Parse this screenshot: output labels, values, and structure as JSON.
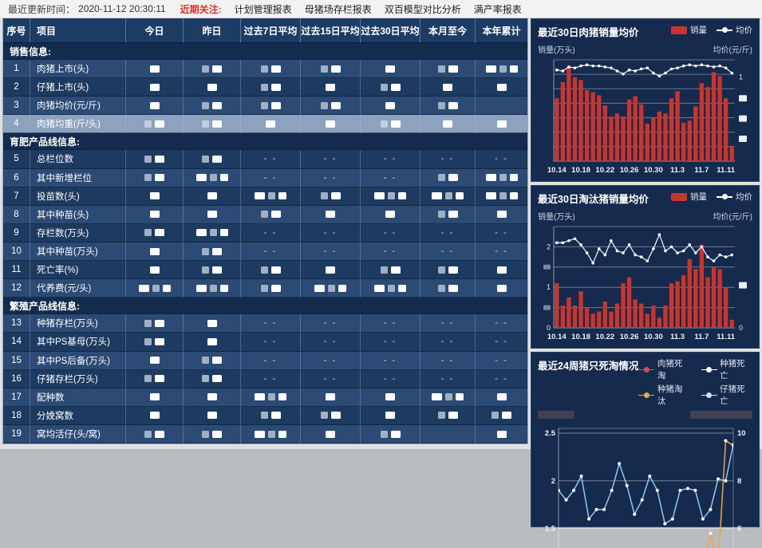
{
  "topbar": {
    "updated_label": "最近更新时间：",
    "updated_time": "2020-11-12 20:30:11",
    "focus_label": "近期关注:",
    "focus_color": "#d9342b",
    "links": [
      "计划管理报表",
      "母猪场存栏报表",
      "双百模型对比分析",
      "满产率报表"
    ]
  },
  "table": {
    "headers": [
      "序号",
      "项目",
      "今日",
      "昨日",
      "过去7日平均",
      "过去15日平均",
      "过去30日平均",
      "本月至今",
      "本年累计"
    ],
    "dash_display": "- -",
    "rows": [
      {
        "type": "section",
        "label": "销售信息:"
      },
      {
        "type": "data",
        "no": "1",
        "item": "肉猪上市(头)",
        "shade": "light",
        "cells": [
          "r1",
          "r2",
          "r2",
          "r2",
          "r1",
          "r2",
          "r3"
        ]
      },
      {
        "type": "data",
        "no": "2",
        "item": "仔猪上市(头)",
        "shade": "dark",
        "cells": [
          "r1",
          "r1",
          "r2",
          "r1",
          "r2",
          "r1",
          "r1"
        ]
      },
      {
        "type": "data",
        "no": "3",
        "item": "肉猪均价(元/斤)",
        "shade": "light",
        "cells": [
          "r1",
          "r2",
          "r2",
          "r2",
          "r1",
          "r2",
          ""
        ]
      },
      {
        "type": "data",
        "no": "4",
        "item": "肉猪均重(斤/头)",
        "shade": "selected",
        "cells": [
          "r2",
          "r2",
          "r1",
          "r1",
          "r2",
          "r1",
          "r1"
        ]
      },
      {
        "type": "section",
        "label": "育肥产品线信息:"
      },
      {
        "type": "data",
        "no": "5",
        "item": "总栏位数",
        "shade": "dark",
        "cells": [
          "r2",
          "r2",
          "--",
          "--",
          "--",
          "--",
          "--"
        ]
      },
      {
        "type": "data",
        "no": "6",
        "item": "其中新增栏位",
        "shade": "light",
        "cells": [
          "r2",
          "r3",
          "--",
          "--",
          "--",
          "r2",
          "r3"
        ]
      },
      {
        "type": "data",
        "no": "7",
        "item": "投苗数(头)",
        "shade": "dark",
        "cells": [
          "r1",
          "r1",
          "r3",
          "r2",
          "r3",
          "r3",
          "r3"
        ]
      },
      {
        "type": "data",
        "no": "8",
        "item": "其中种苗(头)",
        "shade": "light",
        "cells": [
          "r1",
          "r1",
          "r2",
          "r1",
          "r1",
          "r2",
          "r1"
        ]
      },
      {
        "type": "data",
        "no": "9",
        "item": "存栏数(万头)",
        "shade": "dark",
        "cells": [
          "r2",
          "r3",
          "--",
          "--",
          "--",
          "--",
          "--"
        ]
      },
      {
        "type": "data",
        "no": "10",
        "item": "其中种苗(万头)",
        "shade": "light",
        "cells": [
          "r1",
          "r2",
          "--",
          "--",
          "--",
          "--",
          "--"
        ]
      },
      {
        "type": "data",
        "no": "11",
        "item": "死亡率(%)",
        "shade": "dark",
        "cells": [
          "r1",
          "r2",
          "r2",
          "r1",
          "r2",
          "r2",
          "r1"
        ]
      },
      {
        "type": "data",
        "no": "12",
        "item": "代养费(元/头)",
        "shade": "light",
        "cells": [
          "r3",
          "r3",
          "r2",
          "r3",
          "r3",
          "r2",
          "r1"
        ]
      },
      {
        "type": "section",
        "label": "繁殖产品线信息:"
      },
      {
        "type": "data",
        "no": "13",
        "item": "种猪存栏(万头)",
        "shade": "light",
        "cells": [
          "r2",
          "r1",
          "--",
          "--",
          "--",
          "--",
          "--"
        ]
      },
      {
        "type": "data",
        "no": "14",
        "item": "其中PS基母(万头)",
        "shade": "dark",
        "cells": [
          "r2",
          "r1",
          "--",
          "--",
          "--",
          "--",
          "--"
        ]
      },
      {
        "type": "data",
        "no": "15",
        "item": "其中PS后备(万头)",
        "shade": "light",
        "cells": [
          "r1",
          "r2",
          "--",
          "--",
          "--",
          "--",
          "--"
        ]
      },
      {
        "type": "data",
        "no": "16",
        "item": "仔猪存栏(万头)",
        "shade": "dark",
        "cells": [
          "r2",
          "r2",
          "--",
          "--",
          "--",
          "--",
          "--"
        ]
      },
      {
        "type": "data",
        "no": "17",
        "item": "配种数",
        "shade": "light",
        "cells": [
          "r1",
          "r1",
          "r3",
          "r1",
          "r1",
          "r3",
          "r1"
        ]
      },
      {
        "type": "data",
        "no": "18",
        "item": "分娩窝数",
        "shade": "dark",
        "cells": [
          "r1",
          "r1",
          "r2",
          "r2",
          "r1",
          "r2",
          "r2"
        ]
      },
      {
        "type": "data",
        "no": "19",
        "item": "窝均活仔(头/窝)",
        "shade": "light",
        "cells": [
          "r2",
          "r2",
          "r3",
          "r1",
          "r2",
          "",
          "r1"
        ]
      }
    ]
  },
  "chart_data": [
    {
      "type": "bar",
      "title": "最近30日肉猪销量均价",
      "legend": [
        {
          "name": "销量",
          "kind": "bar",
          "color": "#c9352e"
        },
        {
          "name": "均价",
          "kind": "line",
          "color": "#ffffff"
        }
      ],
      "ylabel_left": "销量(万头)",
      "ylabel_right": "均价(元/斤)",
      "note": "y-axis numeric labels redacted except right-axis value 1",
      "x_tick_labels": [
        "10.14",
        "10.18",
        "10.22",
        "10.26",
        "10.30",
        "11.3",
        "11.7",
        "11.11"
      ],
      "x_tick_indices": [
        0,
        4,
        8,
        12,
        16,
        20,
        24,
        28
      ],
      "bars_relative": [
        0.62,
        0.78,
        0.93,
        0.83,
        0.8,
        0.7,
        0.68,
        0.65,
        0.55,
        0.44,
        0.47,
        0.44,
        0.61,
        0.64,
        0.56,
        0.37,
        0.43,
        0.49,
        0.47,
        0.62,
        0.69,
        0.38,
        0.4,
        0.54,
        0.77,
        0.73,
        0.88,
        0.84,
        0.62,
        0.15
      ],
      "line_relative": [
        0.9,
        0.89,
        0.93,
        0.92,
        0.94,
        0.95,
        0.94,
        0.94,
        0.93,
        0.92,
        0.89,
        0.86,
        0.9,
        0.89,
        0.91,
        0.92,
        0.87,
        0.84,
        0.87,
        0.91,
        0.92,
        0.94,
        0.95,
        0.94,
        0.95,
        0.94,
        0.93,
        0.94,
        0.92,
        0.87
      ],
      "right_ticks": [
        {
          "f": 0.83,
          "t": "1"
        },
        {
          "f": 0.62,
          "blob": true
        },
        {
          "f": 0.42,
          "blob": true
        },
        {
          "f": 0.22,
          "blob": true
        }
      ],
      "grid_count": 7
    },
    {
      "type": "bar",
      "title": "最近30日淘汰猪销量均价",
      "legend": [
        {
          "name": "销量",
          "kind": "bar",
          "color": "#c9352e"
        },
        {
          "name": "均价",
          "kind": "line",
          "color": "#ffffff"
        }
      ],
      "ylabel_left": "销量(万头)",
      "ylabel_right": "均价(元/斤)",
      "ylim": [
        0,
        2.5
      ],
      "x_tick_labels": [
        "10.14",
        "10.18",
        "10.22",
        "10.26",
        "10.30",
        "11.3",
        "11.7",
        "11.11"
      ],
      "x_tick_indices": [
        0,
        4,
        8,
        12,
        16,
        20,
        24,
        28
      ],
      "bars": [
        1.1,
        0.55,
        0.75,
        0.55,
        0.9,
        0.5,
        0.35,
        0.4,
        0.65,
        0.4,
        0.6,
        1.1,
        1.25,
        0.7,
        0.6,
        0.35,
        0.55,
        0.25,
        0.55,
        1.1,
        1.15,
        1.3,
        1.7,
        1.45,
        2.05,
        1.25,
        1.5,
        1.45,
        1.0,
        0.2
      ],
      "line": [
        2.1,
        2.1,
        2.15,
        2.2,
        2.05,
        1.85,
        1.6,
        1.95,
        1.8,
        2.15,
        1.9,
        1.85,
        2.05,
        1.8,
        1.75,
        1.65,
        1.95,
        2.3,
        1.9,
        2.0,
        1.85,
        1.9,
        2.05,
        1.85,
        2.0,
        1.75,
        1.65,
        1.8,
        1.75,
        1.8
      ],
      "left_ticks": [
        {
          "v": 0,
          "t": "0"
        },
        {
          "v": 0.5,
          "blob": true
        },
        {
          "v": 1,
          "t": "1"
        },
        {
          "v": 1.5,
          "blob": true
        },
        {
          "v": 2,
          "t": "2"
        }
      ],
      "right_ticks": [
        {
          "v": 0,
          "t": "0"
        },
        {
          "v": 1.05,
          "blob": true
        }
      ]
    },
    {
      "type": "line",
      "title": "最近24周猪只死淘情况",
      "legend": [
        {
          "name": "肉猪死淘",
          "color": "#e04a3f"
        },
        {
          "name": "种猪死亡",
          "color": "#ffffff"
        },
        {
          "name": "种猪淘汰",
          "color": "#f0a63c"
        },
        {
          "name": "仔猪死亡",
          "color": "#bfe3f7"
        }
      ],
      "note": "axis titles redacted; chart bottom cut off by viewport",
      "left_ticks": [
        2.5,
        2,
        1.5
      ],
      "right_ticks": [
        10,
        8,
        6
      ],
      "series": [
        {
          "name": "仔猪死亡",
          "color": "#8ec9ec",
          "values": [
            1.9,
            1.8,
            1.9,
            2.05,
            1.6,
            1.7,
            1.7,
            1.9,
            2.18,
            1.95,
            1.65,
            1.8,
            2.05,
            1.9,
            1.55,
            1.6,
            1.9,
            1.92,
            1.9,
            1.6,
            1.7,
            2.02,
            2.0,
            2.38
          ]
        },
        {
          "name": "种猪淘汰",
          "color": "#f0a63c",
          "values": [
            1.1,
            1.1,
            1.1,
            1.1,
            1.1,
            1.1,
            1.1,
            1.1,
            1.1,
            1.1,
            1.1,
            1.1,
            1.1,
            1.1,
            1.1,
            1.1,
            1.1,
            1.1,
            1.1,
            1.1,
            1.45,
            1.1,
            2.42,
            2.37
          ]
        }
      ]
    }
  ]
}
